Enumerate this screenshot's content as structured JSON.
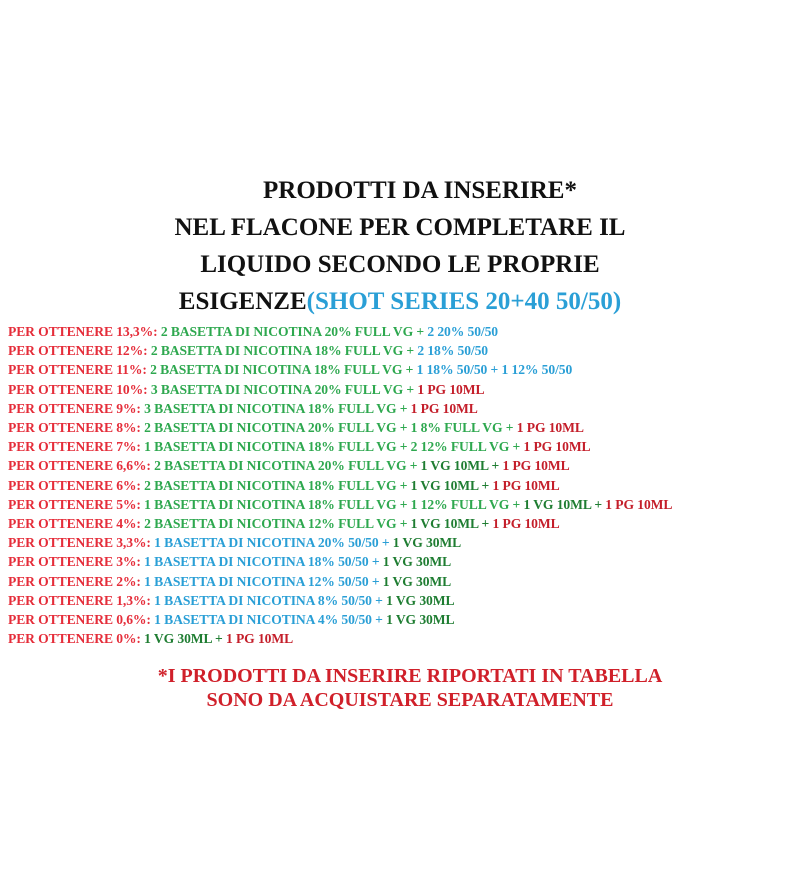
{
  "title": {
    "lines": [
      "Prodotti da inserire*",
      "nel flacone per completare il",
      "liquido secondo le proprie"
    ],
    "last_line_black": "Esigenze",
    "last_line_blue": "(Shot Series 20+40 50/50)"
  },
  "colors": {
    "r": "#e52d3a",
    "g": "#2ea84f",
    "b": "#2a9fd6",
    "pr": "#c41e2a",
    "dg": "#1f7d32"
  },
  "rows": [
    [
      [
        "Per ottenere 13,3%: ",
        "r"
      ],
      [
        "2 basetta di nicotina 20% full VG + ",
        "g"
      ],
      [
        "2 20% 50/50",
        "b"
      ]
    ],
    [
      [
        "Per ottenere 12%: ",
        "r"
      ],
      [
        "2 basetta di nicotina 18% full VG + ",
        "g"
      ],
      [
        "2 18% 50/50",
        "b"
      ]
    ],
    [
      [
        "Per ottenere 11%: ",
        "r"
      ],
      [
        "2 basetta di nicotina 18% full VG + ",
        "g"
      ],
      [
        "1 18% 50/50 + 1 12% 50/50",
        "b"
      ]
    ],
    [
      [
        "Per ottenere 10%: ",
        "r"
      ],
      [
        "3 basetta di nicotina 20% full VG + ",
        "g"
      ],
      [
        "1 PG 10ml",
        "pr"
      ]
    ],
    [
      [
        "Per ottenere 9%: ",
        "r"
      ],
      [
        "3 basetta di nicotina 18% full VG + ",
        "g"
      ],
      [
        "1 PG 10ml",
        "pr"
      ]
    ],
    [
      [
        "Per ottenere 8%: ",
        "r"
      ],
      [
        "2 basetta di nicotina 20% full VG + 1 8% full VG + ",
        "g"
      ],
      [
        "1 PG 10ml",
        "pr"
      ]
    ],
    [
      [
        "Per ottenere 7%: ",
        "r"
      ],
      [
        "1 basetta di nicotina 18% full VG + 2 12% full VG + ",
        "g"
      ],
      [
        "1 PG 10ml",
        "pr"
      ]
    ],
    [
      [
        "Per ottenere 6,6%: ",
        "r"
      ],
      [
        "2 basetta di nicotina 20% full VG + ",
        "g"
      ],
      [
        "1 VG 10ml + ",
        "dg"
      ],
      [
        "1 PG 10ml",
        "pr"
      ]
    ],
    [
      [
        "Per ottenere 6%: ",
        "r"
      ],
      [
        "2 basetta di nicotina 18% full VG + ",
        "g"
      ],
      [
        "1 VG 10ml + ",
        "dg"
      ],
      [
        "1 PG 10ml",
        "pr"
      ]
    ],
    [
      [
        "Per ottenere 5%: ",
        "r"
      ],
      [
        "1 basetta di nicotina 18% full VG + 1 12% full VG + ",
        "g"
      ],
      [
        "1 VG 10ml + ",
        "dg"
      ],
      [
        "1 PG 10ml",
        "pr"
      ]
    ],
    [
      [
        "Per ottenere 4%: ",
        "r"
      ],
      [
        "2 basetta di nicotina 12% full VG + ",
        "g"
      ],
      [
        "1 VG 10ml + ",
        "dg"
      ],
      [
        "1 PG 10ml",
        "pr"
      ]
    ],
    [
      [
        "Per ottenere 3,3%: ",
        "r"
      ],
      [
        "1 basetta di nicotina 20% 50/50 + ",
        "b"
      ],
      [
        "1 VG 30ml",
        "dg"
      ]
    ],
    [
      [
        "Per ottenere 3%: ",
        "r"
      ],
      [
        "1 basetta di nicotina 18% 50/50 + ",
        "b"
      ],
      [
        "1 VG 30ml",
        "dg"
      ]
    ],
    [
      [
        "Per ottenere 2%: ",
        "r"
      ],
      [
        "1 basetta di nicotina 12% 50/50 + ",
        "b"
      ],
      [
        "1 VG 30ml",
        "dg"
      ]
    ],
    [
      [
        "Per ottenere 1,3%: ",
        "r"
      ],
      [
        "1 basetta di nicotina 8% 50/50 + ",
        "b"
      ],
      [
        "1 VG 30ml",
        "dg"
      ]
    ],
    [
      [
        "Per ottenere 0,6%: ",
        "r"
      ],
      [
        "1 basetta di nicotina 4% 50/50 + ",
        "b"
      ],
      [
        "1 VG 30ml",
        "dg"
      ]
    ],
    [
      [
        "Per ottenere 0%: ",
        "r"
      ],
      [
        "1 VG 30ml + ",
        "dg"
      ],
      [
        "1 PG 10ml",
        "pr"
      ]
    ]
  ],
  "footer": [
    "*I prodotti da inserire riportati in tabella",
    "sono da acquistare separatamente"
  ]
}
